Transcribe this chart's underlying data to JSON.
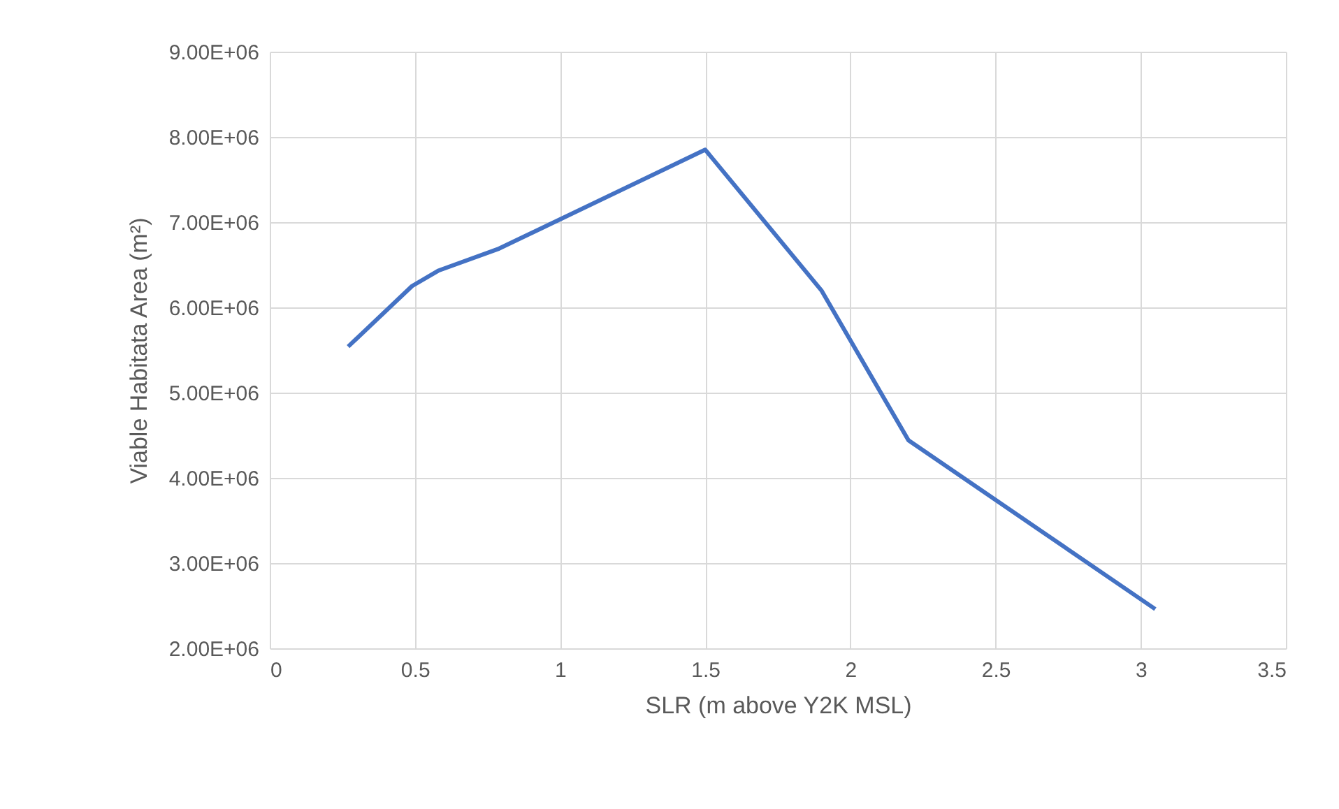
{
  "chart_data": {
    "type": "line",
    "xlabel": "SLR (m above Y2K MSL)",
    "ylabel": "Viable Habitata Area (m²)",
    "x": [
      0.27,
      0.49,
      0.58,
      0.79,
      1.5,
      1.9,
      2.2,
      3.05
    ],
    "series": [
      {
        "color": "#4472c4",
        "values": [
          5540000,
          6250000,
          6430000,
          6690000,
          7850000,
          6200000,
          4440000,
          2460000
        ]
      }
    ],
    "xlim": [
      0,
      3.5
    ],
    "xticks": [
      0,
      0.5,
      1,
      1.5,
      2,
      2.5,
      3,
      3.5
    ],
    "ylim": [
      2000000,
      9000000
    ],
    "yticks": [
      {
        "value": 2000000,
        "label": "2.00E+06"
      },
      {
        "value": 3000000,
        "label": "3.00E+06"
      },
      {
        "value": 4000000,
        "label": "4.00E+06"
      },
      {
        "value": 5000000,
        "label": "5.00E+06"
      },
      {
        "value": 6000000,
        "label": "6.00E+06"
      },
      {
        "value": 7000000,
        "label": "7.00E+06"
      },
      {
        "value": 8000000,
        "label": "8.00E+06"
      },
      {
        "value": 9000000,
        "label": "9.00E+06"
      }
    ],
    "grid": true,
    "marker": "none",
    "line_style": "solid"
  }
}
